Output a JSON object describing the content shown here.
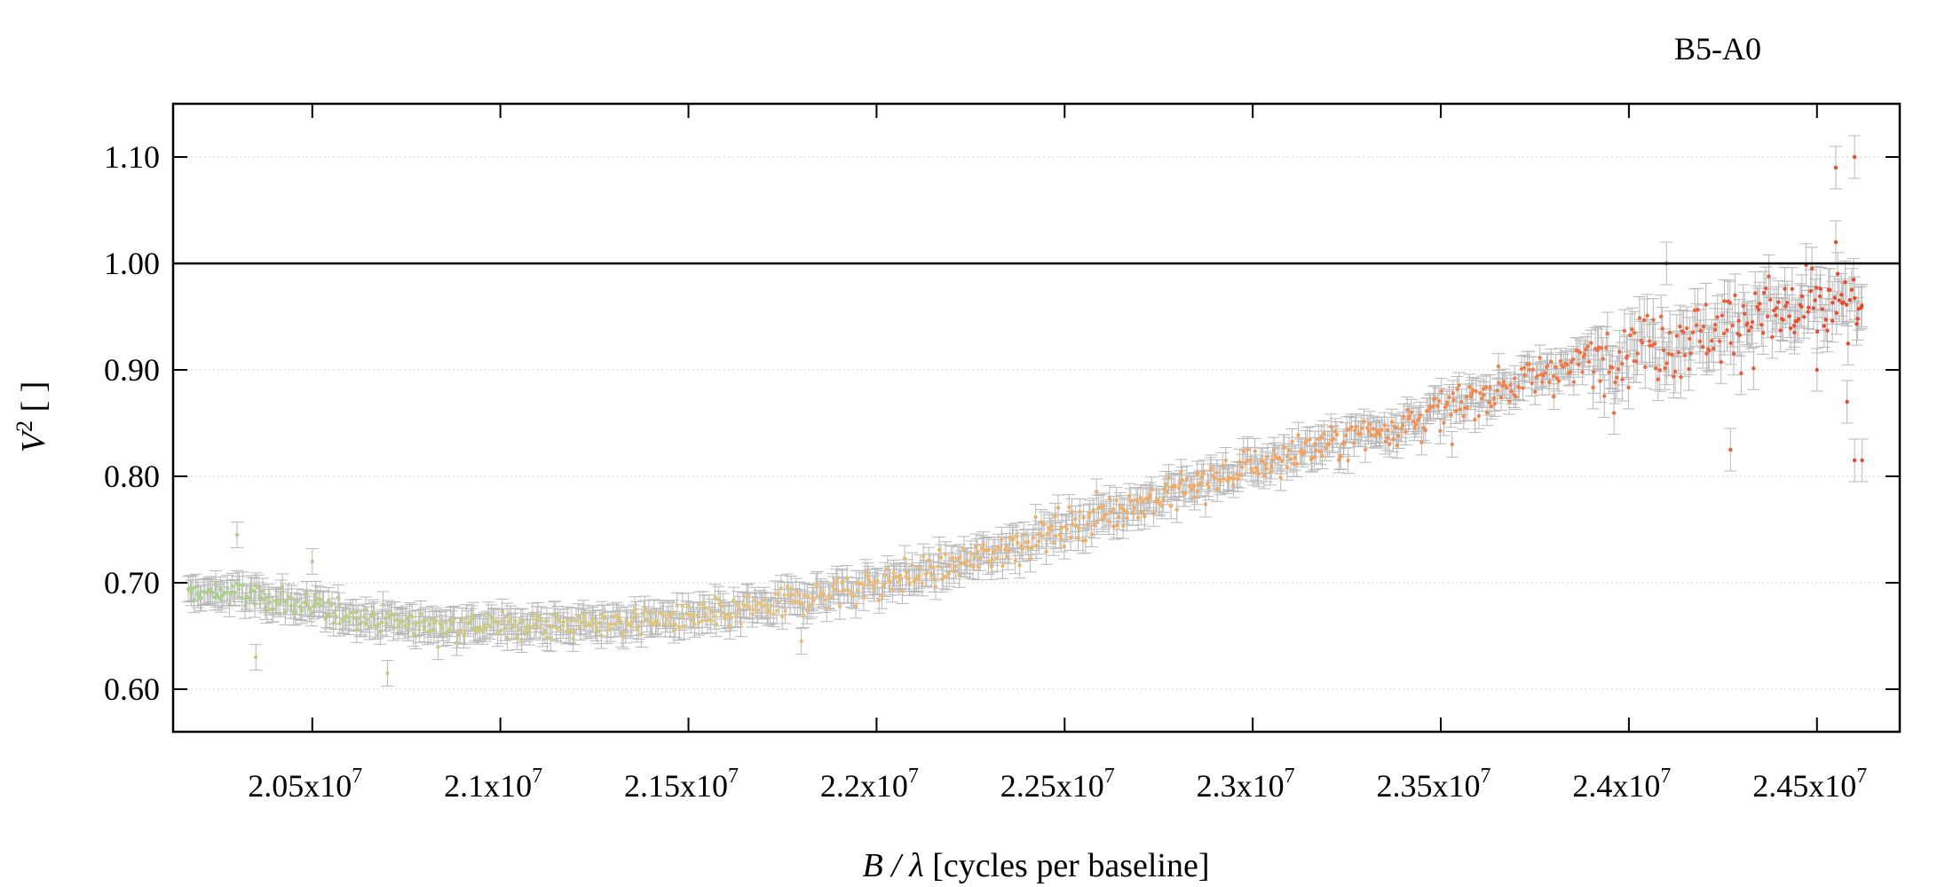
{
  "chart_data": {
    "type": "scatter",
    "title": "B5-A0",
    "xlabel": {
      "var": "B / λ",
      "unit": " [cycles per baseline]"
    },
    "ylabel": {
      "var": "V",
      "sup": "2",
      "unit": " [ ]"
    },
    "xlim": [
      20130000,
      24720000
    ],
    "ylim": [
      0.56,
      1.15
    ],
    "x_ticks": [
      {
        "value": 20500000,
        "mant": "2.05x10",
        "exp": "7"
      },
      {
        "value": 21000000,
        "mant": "2.1x10",
        "exp": "7"
      },
      {
        "value": 21500000,
        "mant": "2.15x10",
        "exp": "7"
      },
      {
        "value": 22000000,
        "mant": "2.2x10",
        "exp": "7"
      },
      {
        "value": 22500000,
        "mant": "2.25x10",
        "exp": "7"
      },
      {
        "value": 23000000,
        "mant": "2.3x10",
        "exp": "7"
      },
      {
        "value": 23500000,
        "mant": "2.35x10",
        "exp": "7"
      },
      {
        "value": 24000000,
        "mant": "2.4x10",
        "exp": "7"
      },
      {
        "value": 24500000,
        "mant": "2.45x10",
        "exp": "7"
      }
    ],
    "y_ticks": [
      {
        "value": 0.6,
        "label": "0.60"
      },
      {
        "value": 0.7,
        "label": "0.70"
      },
      {
        "value": 0.8,
        "label": "0.80"
      },
      {
        "value": 0.9,
        "label": "0.90"
      },
      {
        "value": 1.0,
        "label": "1.00"
      },
      {
        "value": 1.1,
        "label": "1.10"
      }
    ],
    "reference_line_y": 1.0,
    "grid": "horizontal dotted",
    "errorbar_color": "#b8b8b8",
    "color_scale": [
      "#a9d18e",
      "#e8c27a",
      "#f4a460",
      "#e8452c"
    ],
    "trend_points": [
      [
        20170000,
        0.69
      ],
      [
        20300000,
        0.69
      ],
      [
        20450000,
        0.68
      ],
      [
        20600000,
        0.67
      ],
      [
        20800000,
        0.66
      ],
      [
        21000000,
        0.66
      ],
      [
        21200000,
        0.66
      ],
      [
        21400000,
        0.665
      ],
      [
        21600000,
        0.67
      ],
      [
        21800000,
        0.685
      ],
      [
        22000000,
        0.7
      ],
      [
        22200000,
        0.715
      ],
      [
        22400000,
        0.74
      ],
      [
        22600000,
        0.765
      ],
      [
        22800000,
        0.785
      ],
      [
        23000000,
        0.81
      ],
      [
        23200000,
        0.83
      ],
      [
        23400000,
        0.85
      ],
      [
        23600000,
        0.875
      ],
      [
        23800000,
        0.9
      ],
      [
        24000000,
        0.92
      ],
      [
        24200000,
        0.935
      ],
      [
        24400000,
        0.955
      ],
      [
        24620000,
        0.96
      ]
    ],
    "point_count": 1100,
    "noise": {
      "base": 0.01,
      "high_x": 23900000,
      "high": 0.03
    },
    "outliers": [
      [
        24550000,
        1.09
      ],
      [
        24600000,
        1.1
      ],
      [
        24600000,
        0.815
      ],
      [
        24620000,
        0.815
      ],
      [
        24550000,
        1.02
      ],
      [
        24440000,
        0.935
      ],
      [
        24270000,
        0.825
      ],
      [
        24100000,
        1.0
      ],
      [
        23530000,
        0.83
      ],
      [
        20350000,
        0.63
      ],
      [
        20500000,
        0.72
      ],
      [
        20700000,
        0.615
      ],
      [
        20300000,
        0.745
      ],
      [
        21800000,
        0.645
      ],
      [
        24580000,
        0.87
      ],
      [
        24500000,
        0.9
      ]
    ]
  }
}
